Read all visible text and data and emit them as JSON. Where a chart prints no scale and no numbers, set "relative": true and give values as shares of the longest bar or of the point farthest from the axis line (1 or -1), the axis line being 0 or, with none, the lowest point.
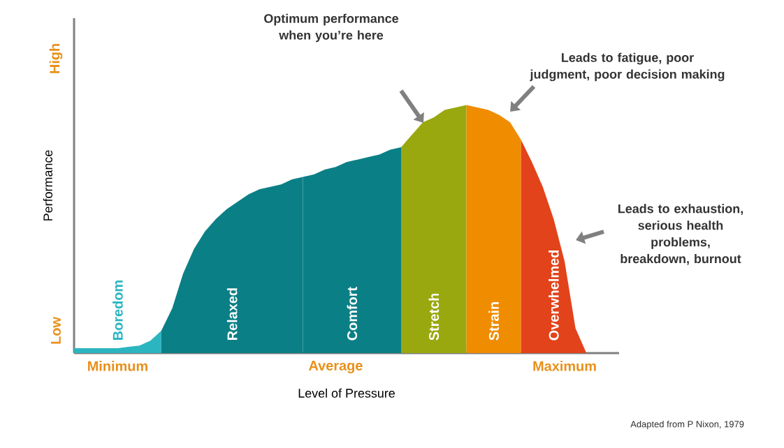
{
  "chart_data": {
    "type": "area",
    "xlabel": "Level of Pressure",
    "ylabel": "Performance",
    "relative": true,
    "categories": [
      null,
      null,
      null,
      null,
      "Minimum",
      null,
      null,
      null,
      null,
      null,
      null,
      null,
      null,
      null,
      null,
      null,
      null,
      null,
      null,
      null,
      null,
      null,
      null,
      null,
      "Average",
      null,
      null,
      null,
      null,
      null,
      null,
      null,
      null,
      null,
      null,
      null,
      null,
      null,
      null,
      null,
      null,
      null,
      null,
      null,
      null,
      "Maximum",
      null,
      null
    ],
    "series": [
      {
        "name": "Boredom",
        "color": "#2bb5c0",
        "values": [
          0.02,
          0.02,
          0.02,
          0.02,
          0.02,
          0.025,
          0.03,
          0.05,
          0.09,
          null,
          null,
          null,
          null,
          null,
          null,
          null,
          null,
          null,
          null,
          null,
          null,
          null,
          null,
          null,
          null,
          null,
          null,
          null,
          null,
          null,
          null,
          null,
          null,
          null,
          null,
          null,
          null,
          null,
          null,
          null,
          null,
          null,
          null,
          null,
          null,
          null,
          null,
          null
        ]
      },
      {
        "name": "Relaxed",
        "color": "#0b7f86",
        "values": [
          null,
          null,
          null,
          null,
          null,
          null,
          null,
          null,
          0.09,
          0.18,
          0.32,
          0.42,
          0.49,
          0.54,
          0.58,
          0.61,
          0.64,
          0.66,
          0.67,
          0.68,
          0.7,
          0.71,
          null,
          null,
          null,
          null,
          null,
          null,
          null,
          null,
          null,
          null,
          null,
          null,
          null,
          null,
          null,
          null,
          null,
          null,
          null,
          null,
          null,
          null,
          null,
          null,
          null,
          null
        ]
      },
      {
        "name": "Comfort",
        "color": "#0b7f86",
        "values": [
          null,
          null,
          null,
          null,
          null,
          null,
          null,
          null,
          null,
          null,
          null,
          null,
          null,
          null,
          null,
          null,
          null,
          null,
          null,
          null,
          null,
          0.71,
          0.72,
          0.74,
          0.75,
          0.77,
          0.78,
          0.79,
          0.8,
          0.82,
          0.83,
          null,
          null,
          null,
          null,
          null,
          null,
          null,
          null,
          null,
          null,
          null,
          null,
          null,
          null,
          null,
          null,
          null
        ]
      },
      {
        "name": "Stretch",
        "color": "#9aa80f",
        "values": [
          null,
          null,
          null,
          null,
          null,
          null,
          null,
          null,
          null,
          null,
          null,
          null,
          null,
          null,
          null,
          null,
          null,
          null,
          null,
          null,
          null,
          null,
          null,
          null,
          null,
          null,
          null,
          null,
          null,
          null,
          0.83,
          0.88,
          0.93,
          0.95,
          0.98,
          0.99,
          1,
          null,
          null,
          null,
          null,
          null,
          null,
          null,
          null,
          null,
          null,
          null
        ]
      },
      {
        "name": "Strain",
        "color": "#f08c00",
        "values": [
          null,
          null,
          null,
          null,
          null,
          null,
          null,
          null,
          null,
          null,
          null,
          null,
          null,
          null,
          null,
          null,
          null,
          null,
          null,
          null,
          null,
          null,
          null,
          null,
          null,
          null,
          null,
          null,
          null,
          null,
          null,
          null,
          null,
          null,
          null,
          null,
          1,
          0.99,
          0.98,
          0.96,
          0.93,
          0.86,
          null,
          null,
          null,
          null,
          null,
          null
        ]
      },
      {
        "name": "Overwhelmed",
        "color": "#e2431a",
        "values": [
          null,
          null,
          null,
          null,
          null,
          null,
          null,
          null,
          null,
          null,
          null,
          null,
          null,
          null,
          null,
          null,
          null,
          null,
          null,
          null,
          null,
          null,
          null,
          null,
          null,
          null,
          null,
          null,
          null,
          null,
          null,
          null,
          null,
          null,
          null,
          null,
          null,
          null,
          null,
          null,
          null,
          0.86,
          0.77,
          0.67,
          0.54,
          0.37,
          0.1,
          0
        ]
      }
    ],
    "annotations": [
      "Optimum performance when you’re here",
      "Leads to fatigue, poor judgment, poor decision making",
      "Leads to exhaustion, serious health problems, breakdown, burnout",
      "Adapted from P Nixon, 1979",
      "Low",
      "High"
    ]
  }
}
